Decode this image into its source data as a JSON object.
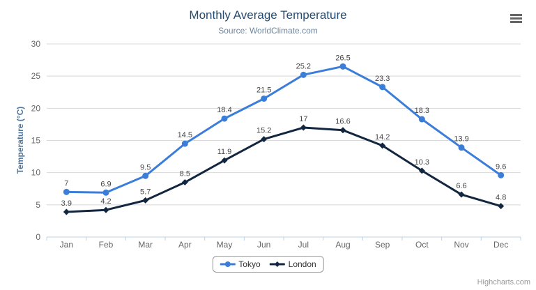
{
  "chart": {
    "title": "Monthly Average Temperature",
    "subtitle": "Source: WorldClimate.com",
    "credits": "Highcharts.com",
    "menu_icon": "hamburger-menu-icon"
  },
  "chart_data": {
    "type": "line",
    "title": "Monthly Average Temperature",
    "subtitle": "Source: WorldClimate.com",
    "categories": [
      "Jan",
      "Feb",
      "Mar",
      "Apr",
      "May",
      "Jun",
      "Jul",
      "Aug",
      "Sep",
      "Oct",
      "Nov",
      "Dec"
    ],
    "series": [
      {
        "name": "Tokyo",
        "marker": "circle",
        "color": "#3b7dd8",
        "values": [
          7,
          6.9,
          9.5,
          14.5,
          18.4,
          21.5,
          25.2,
          26.5,
          23.3,
          18.3,
          13.9,
          9.6
        ]
      },
      {
        "name": "London",
        "marker": "diamond",
        "color": "#13263f",
        "values": [
          3.9,
          4.2,
          5.7,
          8.5,
          11.9,
          15.2,
          17,
          16.6,
          14.2,
          10.3,
          6.6,
          4.8
        ]
      }
    ],
    "xlabel": "",
    "ylabel": "Temperature (°C)",
    "ylim": [
      0,
      30
    ],
    "y_tick_interval": 5,
    "grid": true,
    "data_labels": true,
    "legend_position": "bottom"
  },
  "colors": {
    "title": "#274b6d",
    "subtitle": "#6d869f",
    "axis_title": "#4d759e",
    "tick_label": "#666666",
    "gridline": "#d8d8d8",
    "axis_line": "#c0d0e0",
    "data_label": "#454545",
    "legend_border": "#999999",
    "credits": "#999999",
    "menu_icon": "#666666"
  }
}
